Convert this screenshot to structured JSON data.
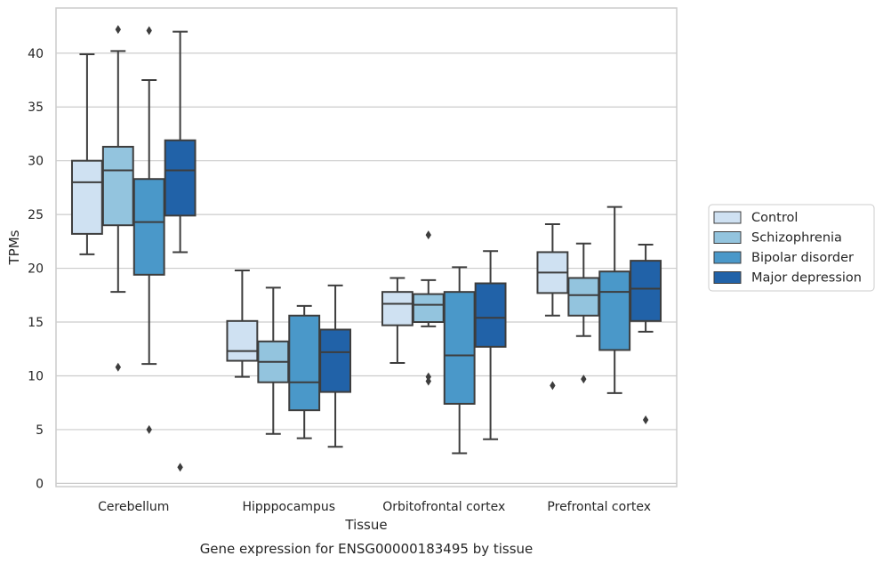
{
  "chart_data": {
    "type": "box",
    "title": "",
    "caption": "Gene expression for ENSG00000183495 by tissue",
    "xlabel": "Tissue",
    "ylabel": "TPMs",
    "ylim": [
      -0.3,
      44.2
    ],
    "yticks": [
      0,
      5,
      10,
      15,
      20,
      25,
      30,
      35,
      40
    ],
    "grid": "horizontal",
    "legend_position": "right",
    "categories": [
      "Cerebellum",
      "Hipppocampus",
      "Orbitofrontal cortex",
      "Prefrontal cortex"
    ],
    "series": [
      {
        "name": "Control",
        "color": "#cfe1f2",
        "boxes": [
          {
            "whisker_low": 21.3,
            "q1": 23.2,
            "median": 28.0,
            "q3": 30.0,
            "whisker_high": 39.9,
            "outliers": []
          },
          {
            "whisker_low": 9.9,
            "q1": 11.4,
            "median": 12.3,
            "q3": 15.1,
            "whisker_high": 19.8,
            "outliers": []
          },
          {
            "whisker_low": 11.2,
            "q1": 14.7,
            "median": 16.7,
            "q3": 17.8,
            "whisker_high": 19.1,
            "outliers": []
          },
          {
            "whisker_low": 15.6,
            "q1": 17.7,
            "median": 19.6,
            "q3": 21.5,
            "whisker_high": 24.1,
            "outliers": [
              9.1
            ]
          }
        ]
      },
      {
        "name": "Schizophrenia",
        "color": "#93c4de",
        "boxes": [
          {
            "whisker_low": 17.8,
            "q1": 24.0,
            "median": 29.1,
            "q3": 31.3,
            "whisker_high": 40.2,
            "outliers": [
              42.2,
              10.8
            ]
          },
          {
            "whisker_low": 4.6,
            "q1": 9.4,
            "median": 11.3,
            "q3": 13.2,
            "whisker_high": 18.2,
            "outliers": []
          },
          {
            "whisker_low": 14.6,
            "q1": 15.0,
            "median": 16.6,
            "q3": 17.6,
            "whisker_high": 18.9,
            "outliers": [
              23.1,
              9.9,
              9.5
            ]
          },
          {
            "whisker_low": 13.7,
            "q1": 15.6,
            "median": 17.5,
            "q3": 19.1,
            "whisker_high": 22.3,
            "outliers": [
              9.7
            ]
          }
        ]
      },
      {
        "name": "Bipolar disorder",
        "color": "#4a98c9",
        "boxes": [
          {
            "whisker_low": 11.1,
            "q1": 19.4,
            "median": 24.3,
            "q3": 28.3,
            "whisker_high": 37.5,
            "outliers": [
              42.1,
              5.0
            ]
          },
          {
            "whisker_low": 4.2,
            "q1": 6.8,
            "median": 9.4,
            "q3": 15.6,
            "whisker_high": 16.5,
            "outliers": []
          },
          {
            "whisker_low": 2.8,
            "q1": 7.4,
            "median": 11.9,
            "q3": 17.8,
            "whisker_high": 20.1,
            "outliers": []
          },
          {
            "whisker_low": 8.4,
            "q1": 12.4,
            "median": 17.8,
            "q3": 19.7,
            "whisker_high": 25.7,
            "outliers": []
          }
        ]
      },
      {
        "name": "Major depression",
        "color": "#2162a8",
        "boxes": [
          {
            "whisker_low": 21.5,
            "q1": 24.9,
            "median": 29.1,
            "q3": 31.9,
            "whisker_high": 42.0,
            "outliers": [
              1.5
            ]
          },
          {
            "whisker_low": 3.4,
            "q1": 8.5,
            "median": 12.2,
            "q3": 14.3,
            "whisker_high": 18.4,
            "outliers": []
          },
          {
            "whisker_low": 4.1,
            "q1": 12.7,
            "median": 15.4,
            "q3": 18.6,
            "whisker_high": 21.6,
            "outliers": []
          },
          {
            "whisker_low": 14.1,
            "q1": 15.1,
            "median": 18.1,
            "q3": 20.7,
            "whisker_high": 22.2,
            "outliers": [
              5.9
            ]
          }
        ]
      }
    ]
  }
}
